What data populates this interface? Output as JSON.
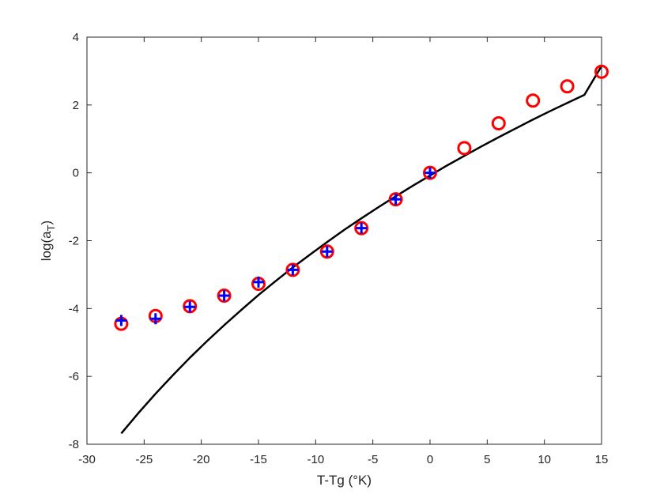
{
  "chart_data": {
    "type": "scatter",
    "title": "",
    "xlabel": "T-Tg (°K)",
    "ylabel_main": "log(a",
    "ylabel_sub": "T",
    "ylabel_close": ")",
    "xlim": [
      -30,
      15
    ],
    "ylim": [
      -8,
      4
    ],
    "xticks": [
      -30,
      -25,
      -20,
      -15,
      -10,
      -5,
      0,
      5,
      10,
      15
    ],
    "yticks": [
      -8,
      -6,
      -4,
      -2,
      0,
      2,
      4
    ],
    "grid": false,
    "legend": "none",
    "series": [
      {
        "marker": "circle",
        "color": "#ff0000",
        "x": [
          -27,
          -24,
          -21,
          -18,
          -15,
          -12,
          -9,
          -6,
          -3,
          0,
          3,
          6,
          9,
          12,
          15
        ],
        "y": [
          -4.45,
          -4.22,
          -3.93,
          -3.62,
          -3.27,
          -2.86,
          -2.32,
          -1.63,
          -0.78,
          0.0,
          0.73,
          1.46,
          2.13,
          2.55,
          2.98
        ]
      },
      {
        "marker": "plus",
        "color": "#0000ff",
        "x": [
          -27,
          -24,
          -21,
          -18,
          -15,
          -12,
          -9,
          -6,
          -3,
          0
        ],
        "y": [
          -4.35,
          -4.3,
          -3.95,
          -3.62,
          -3.22,
          -2.86,
          -2.32,
          -1.63,
          -0.78,
          0.0
        ]
      },
      {
        "marker": "line",
        "color": "#000000",
        "x": [
          -27,
          -25.5,
          -24,
          -22.5,
          -21,
          -19.5,
          -18,
          -16.5,
          -15,
          -13.5,
          -12,
          -10.5,
          -9,
          -7.5,
          -6,
          -4.5,
          -3,
          -1.5,
          0,
          1.5,
          3,
          4.5,
          6,
          7.5,
          9,
          10.5,
          12,
          13.5,
          15
        ],
        "y": [
          -7.68,
          -7.08,
          -6.51,
          -5.97,
          -5.45,
          -4.96,
          -4.49,
          -4.04,
          -3.6,
          -3.19,
          -2.79,
          -2.41,
          -2.04,
          -1.68,
          -1.34,
          -1.01,
          -0.69,
          -0.38,
          -0.08,
          0.22,
          0.5,
          0.78,
          1.05,
          1.31,
          1.57,
          1.82,
          2.06,
          2.3,
          3.15
        ]
      }
    ]
  }
}
